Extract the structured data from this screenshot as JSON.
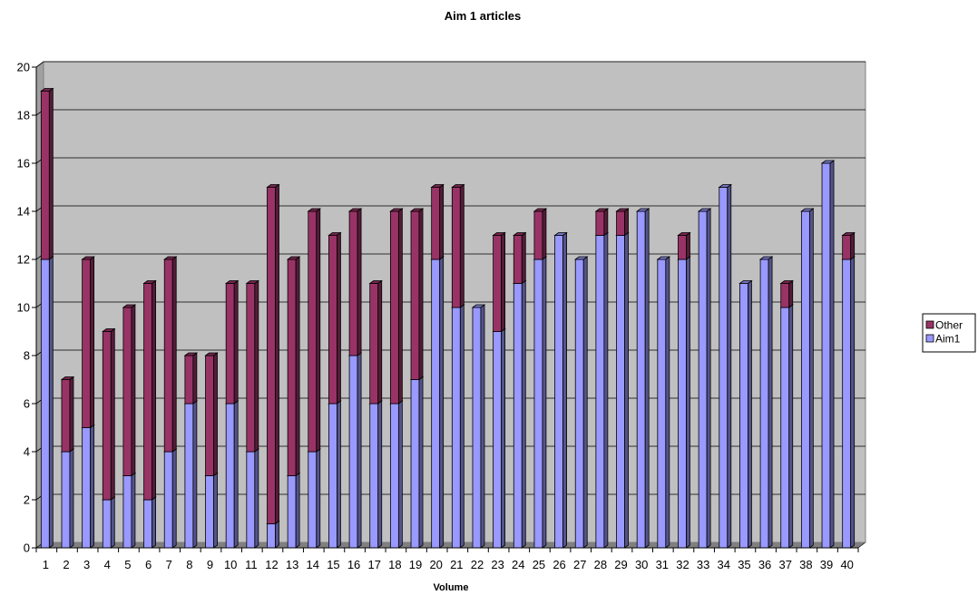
{
  "chart_data": {
    "type": "bar",
    "stacked": true,
    "title": "Aim 1 articles",
    "xlabel": "Volume",
    "ylabel": "",
    "ylim": [
      0,
      20
    ],
    "yticks": [
      0,
      2,
      4,
      6,
      8,
      10,
      12,
      14,
      16,
      18,
      20
    ],
    "grid": true,
    "legend": "right",
    "categories": [
      "1",
      "2",
      "3",
      "4",
      "5",
      "6",
      "7",
      "8",
      "9",
      "10",
      "11",
      "12",
      "13",
      "14",
      "15",
      "16",
      "17",
      "18",
      "19",
      "20",
      "21",
      "22",
      "23",
      "24",
      "25",
      "26",
      "27",
      "28",
      "29",
      "30",
      "31",
      "32",
      "33",
      "34",
      "35",
      "36",
      "37",
      "38",
      "39",
      "40"
    ],
    "series": [
      {
        "name": "Aim1",
        "color": "#9999ff",
        "values": [
          12,
          4,
          5,
          2,
          3,
          2,
          4,
          6,
          3,
          6,
          4,
          1,
          3,
          4,
          6,
          8,
          6,
          6,
          7,
          12,
          10,
          10,
          9,
          11,
          12,
          13,
          12,
          13,
          13,
          14,
          12,
          12,
          14,
          15,
          11,
          12,
          10,
          14,
          16,
          12
        ]
      },
      {
        "name": "Other",
        "color": "#993366",
        "values": [
          7,
          3,
          7,
          7,
          7,
          9,
          8,
          2,
          5,
          5,
          7,
          14,
          9,
          10,
          7,
          6,
          5,
          8,
          7,
          3,
          5,
          0,
          4,
          2,
          2,
          0,
          0,
          1,
          1,
          0,
          0,
          1,
          0,
          0,
          0,
          0,
          1,
          0,
          0,
          1
        ]
      }
    ],
    "legend_order": [
      "Other",
      "Aim1"
    ],
    "plot_background": "#c0c0c0"
  }
}
